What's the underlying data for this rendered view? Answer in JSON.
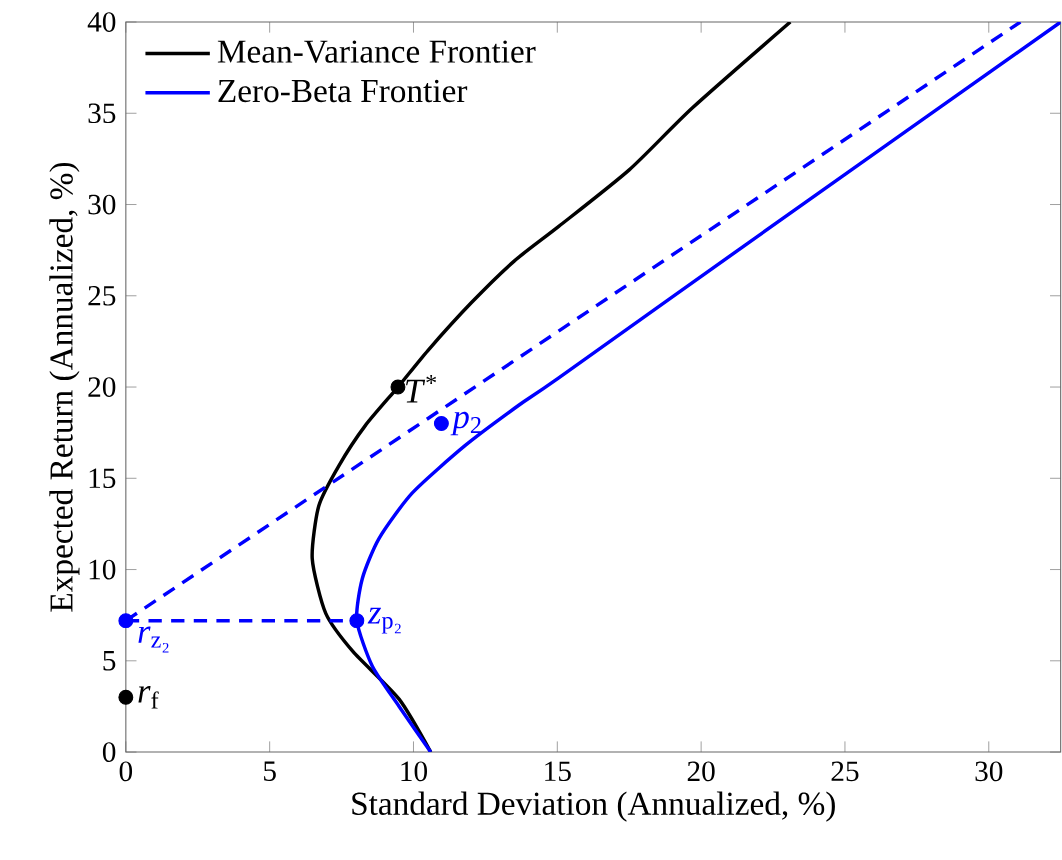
{
  "chart_data": {
    "type": "line",
    "xlabel": "Standard Deviation (Annualized, %)",
    "ylabel": "Expected Return (Annualized, %)",
    "xlim": [
      0,
      32.5
    ],
    "ylim": [
      0,
      40
    ],
    "xticks": [
      0,
      5,
      10,
      15,
      20,
      25,
      30
    ],
    "yticks": [
      0,
      5,
      10,
      15,
      20,
      25,
      30,
      35,
      40
    ],
    "legend": "top left",
    "line_style": "solid",
    "series": [
      {
        "name": "Mean-Variance Frontier",
        "color": "#000000",
        "x": [
          10.6,
          9.5,
          7.9,
          6.95,
          6.48,
          6.71,
          7.41,
          8.33,
          9.46,
          10.5,
          12,
          13.5,
          15.05,
          17.5,
          19.7,
          23.1
        ],
        "values": [
          0,
          2.9,
          5.5,
          7.6,
          10.6,
          13.5,
          15.7,
          17.9,
          20,
          22,
          24.6,
          26.9,
          28.8,
          31.9,
          35.3,
          40
        ]
      },
      {
        "name": "Zero-Beta Frontier",
        "color": "#0000ff",
        "x": [
          10.6,
          9.5,
          8.57,
          8.03,
          8.22,
          8.8,
          9.96,
          11.8,
          13.66,
          15.05,
          22.0,
          32.5
        ],
        "values": [
          0,
          2.5,
          4.7,
          7.2,
          9.5,
          11.7,
          14.2,
          16.8,
          19,
          20.5,
          28.3,
          40
        ]
      },
      {
        "color": "#0000ff",
        "line_style": "dashed",
        "x": [
          0,
          31.1
        ],
        "values": [
          7.2,
          40
        ]
      },
      {
        "color": "#0000ff",
        "line_style": "dashed",
        "x": [
          0,
          8.03
        ],
        "values": [
          7.2,
          7.2
        ]
      },
      {
        "type": "scatter",
        "color": "#000000",
        "marker": "circle",
        "x": [
          9.46,
          0
        ],
        "values": [
          20,
          3
        ]
      },
      {
        "type": "scatter",
        "color": "#0000ff",
        "marker": "circle",
        "x": [
          10.97,
          8.03,
          0
        ],
        "values": [
          18,
          7.2,
          7.2
        ]
      }
    ],
    "annotations": [
      {
        "text": "*T*$^{*}$",
        "x": 9.46,
        "y": 20
      },
      {
        "text": "*p*$_{2}$",
        "x": 10.97,
        "y": 18
      },
      {
        "text": "*z*$_{p₂}$",
        "x": 8.03,
        "y": 7.2
      },
      {
        "text": "*r*$_{z₂}$",
        "x": 0,
        "y": 7.2
      },
      {
        "text": "*r*$_{f}$",
        "x": 0,
        "y": 3
      }
    ]
  }
}
